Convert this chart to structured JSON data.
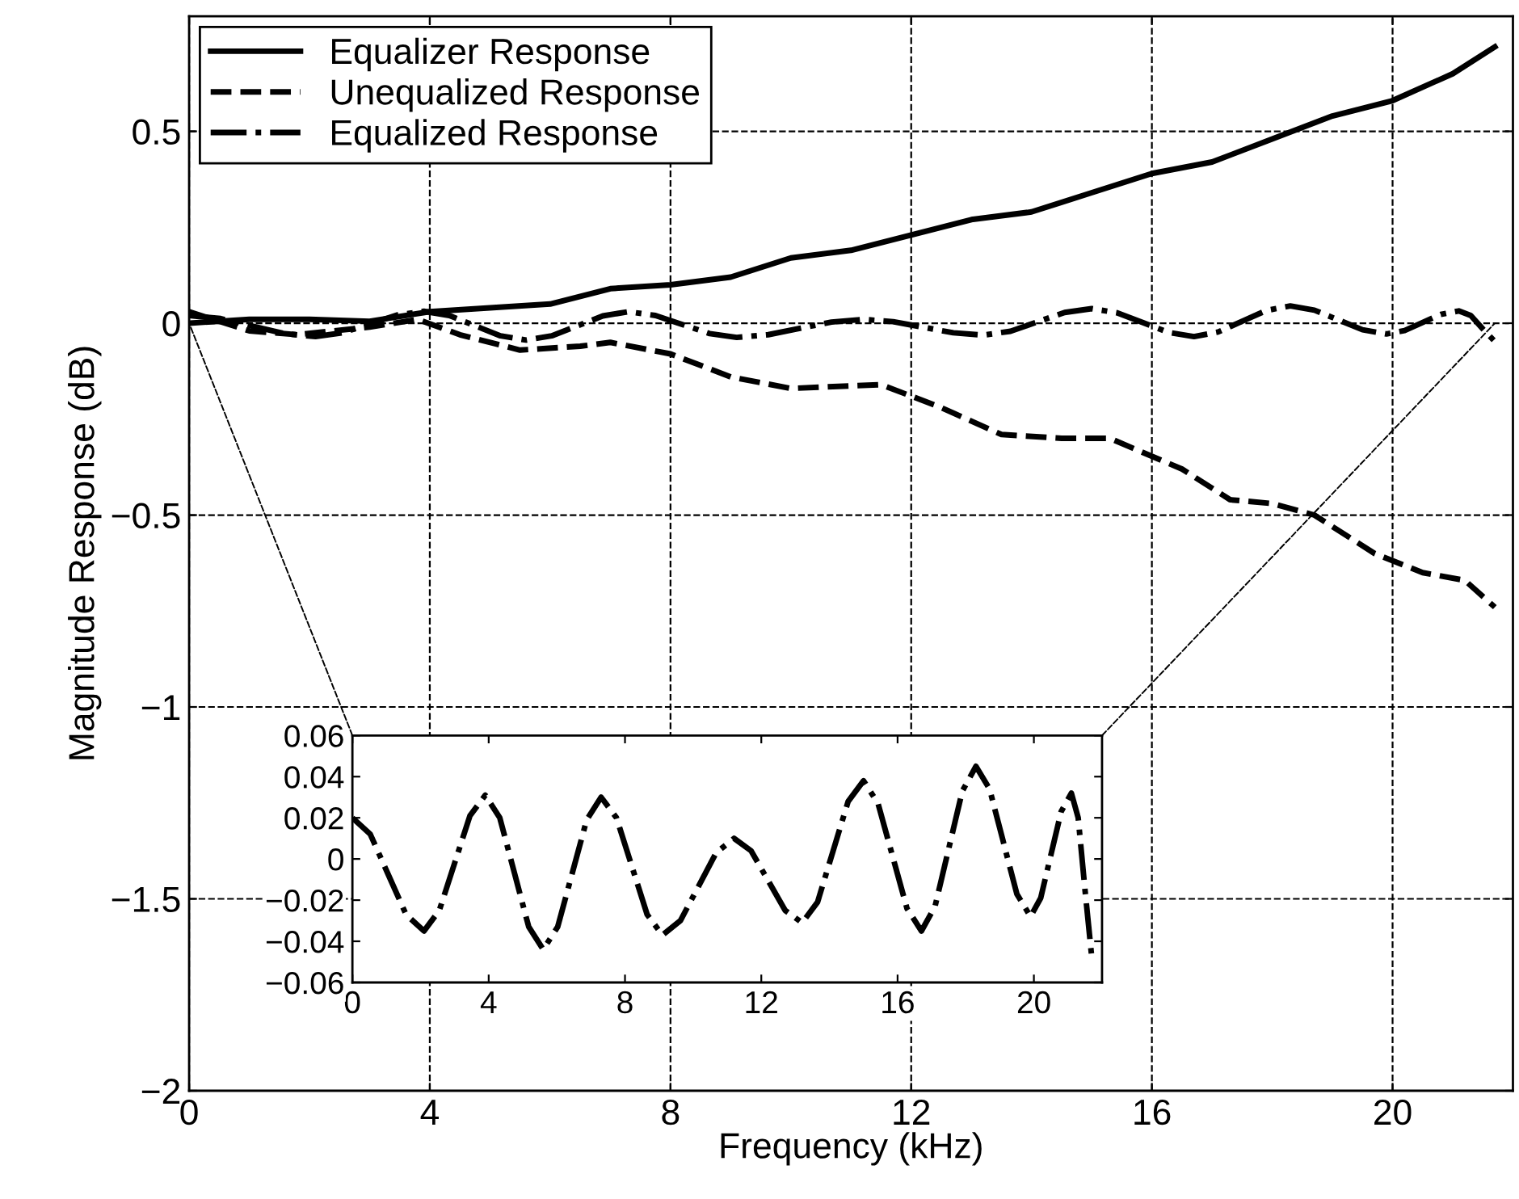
{
  "chart_data": [
    {
      "type": "line",
      "xlabel": "Frequency (kHz)",
      "ylabel": "Magnitude Response (dB)",
      "xlim": [
        0,
        22
      ],
      "ylim": [
        -2,
        0.8
      ],
      "xticks": [
        0,
        4,
        8,
        12,
        16,
        20
      ],
      "yticks": [
        {
          "value": -2,
          "label": "−2"
        },
        {
          "value": -1.5,
          "label": "−1.5"
        },
        {
          "value": -1,
          "label": "−1"
        },
        {
          "value": -0.5,
          "label": "−0.5"
        },
        0,
        0.5
      ],
      "grid": true,
      "legend": "top left",
      "marker": "none",
      "series": [
        {
          "name": "Equalizer Response",
          "color": "#000000",
          "line_style": "solid",
          "x": [
            0,
            1,
            2,
            3,
            4,
            5,
            6,
            7,
            8,
            9,
            10,
            11,
            12,
            13,
            14,
            15,
            16,
            17,
            18,
            19,
            20,
            21,
            21.7
          ],
          "values": [
            0,
            0.01,
            0.01,
            0.005,
            0.03,
            0.04,
            0.05,
            0.09,
            0.1,
            0.12,
            0.17,
            0.19,
            0.23,
            0.27,
            0.29,
            0.34,
            0.39,
            0.42,
            0.48,
            0.54,
            0.58,
            0.65,
            0.72
          ]
        },
        {
          "name": "Unequalized Response",
          "color": "#000000",
          "line_style": "dashed",
          "x": [
            0,
            1,
            1.8,
            3,
            3.8,
            4.5,
            5.5,
            6.5,
            7,
            8,
            9,
            10,
            11.5,
            12.5,
            13.5,
            14.5,
            15.3,
            16.5,
            17.3,
            18,
            18.7,
            19.7,
            20.5,
            21.2,
            21.7
          ],
          "values": [
            0.03,
            -0.02,
            -0.03,
            -0.01,
            0.01,
            -0.03,
            -0.07,
            -0.06,
            -0.05,
            -0.08,
            -0.14,
            -0.17,
            -0.16,
            -0.22,
            -0.29,
            -0.3,
            -0.3,
            -0.38,
            -0.46,
            -0.47,
            -0.5,
            -0.6,
            -0.65,
            -0.67,
            -0.74
          ]
        },
        {
          "name": "Equalized Response",
          "color": "#000000",
          "line_style": "dashdot",
          "x": [
            0,
            0.525,
            1.05,
            1.575,
            2.1,
            2.55,
            3.0,
            3.45,
            3.9,
            4.325,
            4.75,
            5.175,
            5.6,
            6.025,
            6.45,
            6.875,
            7.3,
            7.75,
            8.2,
            8.65,
            9.1,
            9.625,
            10.15,
            10.675,
            11.2,
            11.7,
            12.2,
            12.7,
            13.2,
            13.65,
            14.1,
            14.55,
            15.0,
            15.425,
            15.85,
            16.275,
            16.7,
            17.1,
            17.5,
            17.9,
            18.3,
            18.7,
            19.1,
            19.5,
            19.9,
            20.2,
            20.5,
            20.8,
            21.1,
            21.3,
            21.5,
            21.7
          ],
          "values": [
            0.02,
            0.012,
            -0.0075,
            -0.027,
            -0.035,
            -0.025,
            -0.002,
            0.021,
            0.031,
            0.02,
            -0.0065,
            -0.033,
            -0.044,
            -0.033,
            -0.007,
            0.019,
            0.03,
            0.02,
            -0.0035,
            -0.027,
            -0.037,
            -0.03,
            -0.0135,
            0.003,
            0.01,
            0.004,
            -0.0105,
            -0.025,
            -0.031,
            -0.021,
            0.0035,
            0.028,
            0.038,
            0.027,
            0.0015,
            -0.024,
            -0.035,
            -0.023,
            0.005,
            0.033,
            0.045,
            0.034,
            0.0085,
            -0.017,
            -0.028,
            -0.019,
            0.002,
            0.023,
            0.032,
            0.02,
            -0.015,
            -0.048
          ]
        }
      ]
    },
    {
      "type": "line",
      "xlim": [
        0,
        22
      ],
      "ylim": [
        -0.06,
        0.06
      ],
      "xticks": [
        0,
        4,
        8,
        12,
        16,
        20
      ],
      "yticks": [
        {
          "value": -0.06,
          "label": "−0.06"
        },
        {
          "value": -0.04,
          "label": "−0.04"
        },
        {
          "value": -0.02,
          "label": "−0.02"
        },
        0,
        0.02,
        0.04,
        0.06
      ],
      "grid": false,
      "marker": "none",
      "series": [
        {
          "color": "#000000",
          "line_style": "dashdot",
          "x": [
            0,
            0.525,
            1.05,
            1.575,
            2.1,
            2.55,
            3.0,
            3.45,
            3.9,
            4.325,
            4.75,
            5.175,
            5.6,
            6.025,
            6.45,
            6.875,
            7.3,
            7.75,
            8.2,
            8.65,
            9.1,
            9.625,
            10.15,
            10.675,
            11.2,
            11.7,
            12.2,
            12.7,
            13.2,
            13.65,
            14.1,
            14.55,
            15.0,
            15.425,
            15.85,
            16.275,
            16.7,
            17.1,
            17.5,
            17.9,
            18.3,
            18.7,
            19.1,
            19.5,
            19.9,
            20.2,
            20.5,
            20.8,
            21.1,
            21.3,
            21.5,
            21.7
          ],
          "values": [
            0.02,
            0.012,
            -0.0075,
            -0.027,
            -0.035,
            -0.025,
            -0.002,
            0.021,
            0.031,
            0.02,
            -0.0065,
            -0.033,
            -0.044,
            -0.033,
            -0.007,
            0.019,
            0.03,
            0.02,
            -0.0035,
            -0.027,
            -0.037,
            -0.03,
            -0.0135,
            0.003,
            0.01,
            0.004,
            -0.0105,
            -0.025,
            -0.031,
            -0.021,
            0.0035,
            0.028,
            0.038,
            0.027,
            0.0015,
            -0.024,
            -0.035,
            -0.023,
            0.005,
            0.033,
            0.045,
            0.034,
            0.0085,
            -0.017,
            -0.028,
            -0.019,
            0.002,
            0.023,
            0.032,
            0.02,
            -0.015,
            -0.048
          ]
        }
      ]
    }
  ]
}
